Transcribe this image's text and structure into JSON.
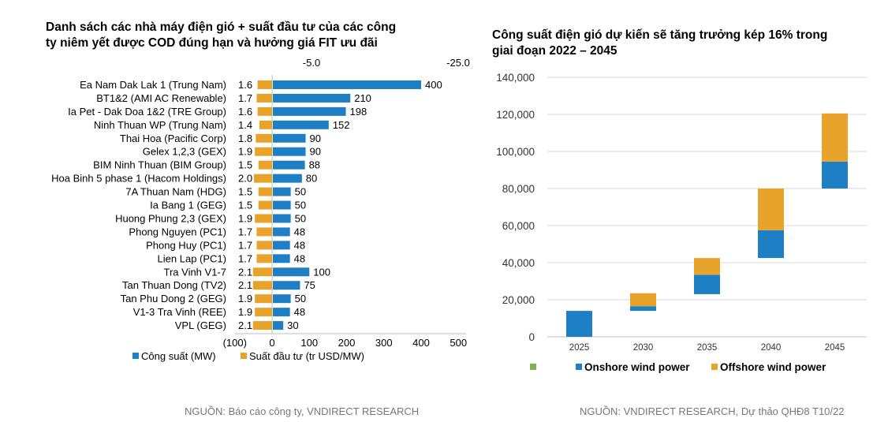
{
  "colors": {
    "capacity": "#1f7fc4",
    "cost": "#e7a32a",
    "onshore": "#1f7fc4",
    "offshore": "#e7a32a",
    "legend_green": "#7ab648",
    "axis": "#bfbfbf",
    "grid": "#d9d9d9",
    "source_text": "#777777"
  },
  "left": {
    "title_lines": [
      "Danh sách các nhà máy điện gió + suất đầu tư của các công",
      "ty niêm yết được COD đúng hạn và hưởng giá FIT ưu đãi"
    ],
    "source": "NGUỒN: Báo cáo công ty, VNDIRECT RESEARCH"
  },
  "right": {
    "title_lines": [
      "Công suất điện gió dự kiến sẽ tăng trưởng kép 16% trong",
      "giai đoạn 2022 – 2045"
    ],
    "source": "NGUỒN: VNDIRECT RESEARCH, Dự thảo QHĐ8 T10/22"
  },
  "chart_data": [
    {
      "type": "bar",
      "orientation": "horizontal",
      "categories": [
        "Ea Nam Dak Lak 1 (Trung Nam)",
        "BT1&2 (AMI AC Renewable)",
        "Ia Pet - Dak Doa 1&2 (TRE Group)",
        "Ninh Thuan WP (Trung Nam)",
        "Thai Hoa (Pacific Corp)",
        "Gelex 1,2,3 (GEX)",
        "BIM Ninh Thuan (BIM Group)",
        "Hoa Binh 5 phase 1 (Hacom Holdings)",
        "7A Thuan Nam (HDG)",
        "Ia Bang 1 (GEG)",
        "Huong Phung 2,3 (GEX)",
        "Phong Nguyen (PC1)",
        "Phong Huy (PC1)",
        "Lien Lap (PC1)",
        "Tra Vinh V1-7",
        "Tan Thuan Dong (TV2)",
        "Tan Phu Dong 2 (GEG)",
        "V1-3 Tra Vinh (REE)",
        "VPL (GEG)"
      ],
      "series": [
        {
          "name": "Công suất (MW)",
          "axis": "bottom",
          "values": [
            400,
            210,
            198,
            152,
            90,
            90,
            88,
            80,
            50,
            50,
            50,
            48,
            48,
            48,
            100,
            75,
            50,
            48,
            30
          ],
          "labels": [
            "400",
            "210",
            "198",
            "152",
            "90",
            "90",
            "88",
            "80",
            "50",
            "50",
            "50",
            "48",
            "48",
            "48",
            "100",
            "75",
            "50",
            "48",
            "30"
          ]
        },
        {
          "name": "Suất đầu tư (tr USD/MW)",
          "axis": "top",
          "values": [
            1.6,
            1.7,
            1.6,
            1.4,
            1.8,
            1.9,
            1.5,
            2.0,
            1.5,
            1.5,
            1.9,
            1.7,
            1.7,
            1.7,
            2.1,
            2.1,
            1.9,
            1.9,
            2.1
          ],
          "labels": [
            "1.6",
            "1.7",
            "1.6",
            "1.4",
            "1.8",
            "1.9",
            "1.5",
            "2.0",
            "1.5",
            "1.5",
            "1.9",
            "1.7",
            "1.7",
            "1.7",
            "2.1",
            "2.1",
            "1.9",
            "1.9",
            "2.1"
          ]
        }
      ],
      "xaxis_bottom": {
        "range": [
          -100,
          500
        ],
        "ticks": [
          -100,
          0,
          100,
          200,
          300,
          400,
          500
        ],
        "tick_labels": [
          "(100)",
          "0",
          "100",
          "200",
          "300",
          "400",
          "500"
        ]
      },
      "xaxis_top": {
        "tick_labels": [
          "-5.0",
          "-25.0"
        ]
      },
      "legend": {
        "position": "bottom"
      }
    },
    {
      "type": "bar",
      "subtype": "waterfall-stacked",
      "categories": [
        "2025",
        "2030",
        "2035",
        "2040",
        "2045"
      ],
      "series": [
        {
          "name": "Onshore wind power",
          "base": [
            0,
            14000,
            23000,
            42500,
            80000
          ],
          "values": [
            14000,
            2500,
            10500,
            15000,
            14500
          ]
        },
        {
          "name": "Offshore wind power",
          "base": [
            14000,
            16500,
            33500,
            57500,
            94500
          ],
          "values": [
            0,
            7000,
            9000,
            22500,
            26000
          ]
        }
      ],
      "yaxis": {
        "range": [
          0,
          140000
        ],
        "ticks": [
          0,
          20000,
          40000,
          60000,
          80000,
          100000,
          120000,
          140000
        ],
        "tick_labels": [
          "0",
          "20,000",
          "40,000",
          "60,000",
          "80,000",
          "100,000",
          "120,000",
          "140,000"
        ]
      },
      "grid": true,
      "legend": {
        "position": "bottom",
        "entries": [
          "",
          "Onshore wind power",
          "Offshore wind power"
        ]
      }
    }
  ]
}
